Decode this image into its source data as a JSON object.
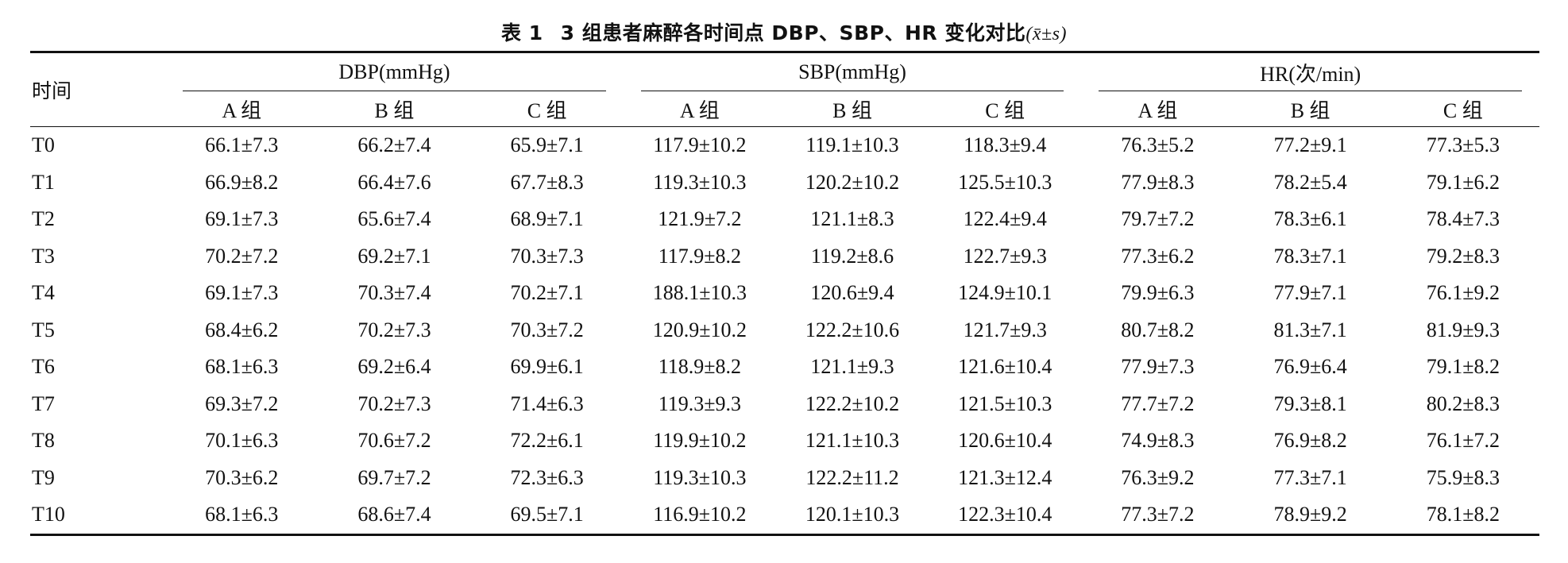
{
  "caption": {
    "label": "表 1",
    "title": "3 组患者麻醉各时间点 DBP、SBP、HR 变化对比",
    "stat": "(x̄±s)"
  },
  "table": {
    "time_header": "时间",
    "groups": [
      "DBP(mmHg)",
      "SBP(mmHg)",
      "HR(次/min)"
    ],
    "subgroups": [
      "A 组",
      "B 组",
      "C 组",
      "A 组",
      "B 组",
      "C 组",
      "A 组",
      "B 组",
      "C 组"
    ],
    "rows": [
      {
        "time": "T0",
        "values": [
          "66.1±7.3",
          "66.2±7.4",
          "65.9±7.1",
          "117.9±10.2",
          "119.1±10.3",
          "118.3±9.4",
          "76.3±5.2",
          "77.2±9.1",
          "77.3±5.3"
        ]
      },
      {
        "time": "T1",
        "values": [
          "66.9±8.2",
          "66.4±7.6",
          "67.7±8.3",
          "119.3±10.3",
          "120.2±10.2",
          "125.5±10.3",
          "77.9±8.3",
          "78.2±5.4",
          "79.1±6.2"
        ]
      },
      {
        "time": "T2",
        "values": [
          "69.1±7.3",
          "65.6±7.4",
          "68.9±7.1",
          "121.9±7.2",
          "121.1±8.3",
          "122.4±9.4",
          "79.7±7.2",
          "78.3±6.1",
          "78.4±7.3"
        ]
      },
      {
        "time": "T3",
        "values": [
          "70.2±7.2",
          "69.2±7.1",
          "70.3±7.3",
          "117.9±8.2",
          "119.2±8.6",
          "122.7±9.3",
          "77.3±6.2",
          "78.3±7.1",
          "79.2±8.3"
        ]
      },
      {
        "time": "T4",
        "values": [
          "69.1±7.3",
          "70.3±7.4",
          "70.2±7.1",
          "188.1±10.3",
          "120.6±9.4",
          "124.9±10.1",
          "79.9±6.3",
          "77.9±7.1",
          "76.1±9.2"
        ]
      },
      {
        "time": "T5",
        "values": [
          "68.4±6.2",
          "70.2±7.3",
          "70.3±7.2",
          "120.9±10.2",
          "122.2±10.6",
          "121.7±9.3",
          "80.7±8.2",
          "81.3±7.1",
          "81.9±9.3"
        ]
      },
      {
        "time": "T6",
        "values": [
          "68.1±6.3",
          "69.2±6.4",
          "69.9±6.1",
          "118.9±8.2",
          "121.1±9.3",
          "121.6±10.4",
          "77.9±7.3",
          "76.9±6.4",
          "79.1±8.2"
        ]
      },
      {
        "time": "T7",
        "values": [
          "69.3±7.2",
          "70.2±7.3",
          "71.4±6.3",
          "119.3±9.3",
          "122.2±10.2",
          "121.5±10.3",
          "77.7±7.2",
          "79.3±8.1",
          "80.2±8.3"
        ]
      },
      {
        "time": "T8",
        "values": [
          "70.1±6.3",
          "70.6±7.2",
          "72.2±6.1",
          "119.9±10.2",
          "121.1±10.3",
          "120.6±10.4",
          "74.9±8.3",
          "76.9±8.2",
          "76.1±7.2"
        ]
      },
      {
        "time": "T9",
        "values": [
          "70.3±6.2",
          "69.7±7.2",
          "72.3±6.3",
          "119.3±10.3",
          "122.2±11.2",
          "121.3±12.4",
          "76.3±9.2",
          "77.3±7.1",
          "75.9±8.3"
        ]
      },
      {
        "time": "T10",
        "values": [
          "68.1±6.3",
          "68.6±7.4",
          "69.5±7.1",
          "116.9±10.2",
          "120.1±10.3",
          "122.3±10.4",
          "77.3±7.2",
          "78.9±9.2",
          "78.1±8.2"
        ]
      }
    ]
  }
}
